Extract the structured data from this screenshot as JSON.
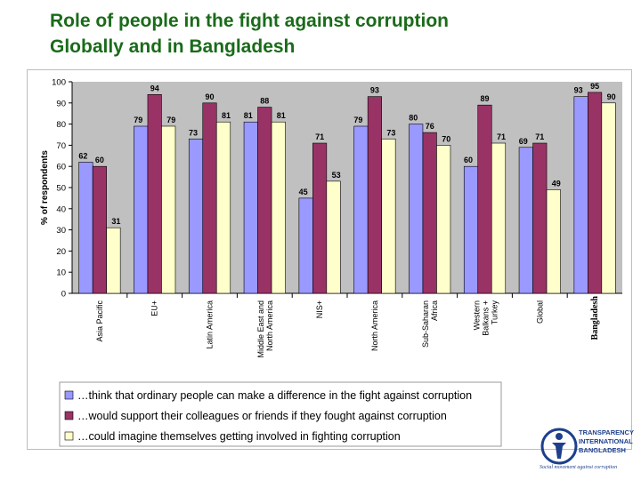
{
  "title_line1": "Role of people in the fight against corruption",
  "title_line2": "Globally and in Bangladesh",
  "colors": {
    "title": "#1a6b1a",
    "series1": "#9999ff",
    "series2": "#993366",
    "series3": "#ffffcc",
    "plot_bg": "#c0c0c0"
  },
  "chart_data": {
    "type": "bar",
    "ylabel": "% of respondents",
    "ylim": [
      0,
      100
    ],
    "yticks": [
      0,
      10,
      20,
      30,
      40,
      50,
      60,
      70,
      80,
      90,
      100
    ],
    "grid": false,
    "legend_position": "bottom",
    "categories": [
      "Asia Pacific",
      "EU+",
      "Latin America",
      "Middle East and North America",
      "NIS+",
      "North America",
      "Sub-Saharan Africa",
      "Western Balkans + Turkey",
      "Global",
      "Bangladesh"
    ],
    "series": [
      {
        "name": "…think that ordinary people can make a difference in the fight against corruption",
        "values": [
          62,
          79,
          73,
          81,
          45,
          79,
          80,
          60,
          69,
          93
        ]
      },
      {
        "name": "…would support their colleagues or friends if they fought against corruption",
        "values": [
          60,
          94,
          90,
          88,
          71,
          93,
          76,
          89,
          71,
          95
        ]
      },
      {
        "name": "…could imagine themselves getting involved in fighting corruption",
        "values": [
          31,
          79,
          81,
          81,
          53,
          73,
          70,
          71,
          49,
          90
        ]
      }
    ]
  },
  "logo": {
    "line1": "TRANSPARENCY",
    "line2": "INTERNATIONAL",
    "line3": "BANGLADESH",
    "tagline": "Social movement against corruption",
    "icon": "ti-globe-figure-icon"
  }
}
